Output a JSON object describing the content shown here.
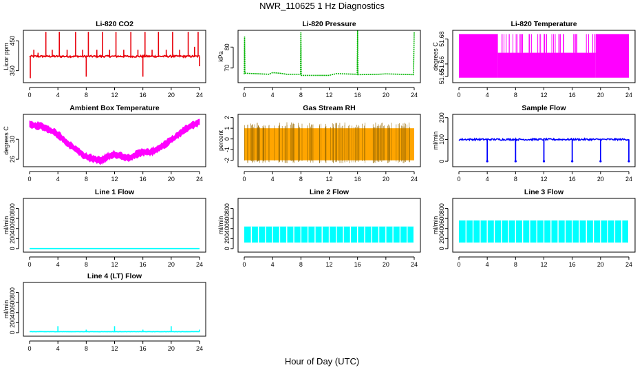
{
  "figure": {
    "title": "NWR_110625  1 Hz Diagnostics",
    "xlabel": "Hour of Day (UTC)"
  },
  "chart_data": [
    {
      "type": "line",
      "title": "Li-820 CO2",
      "ylabel": "Licor ppm",
      "color": "#e8000b",
      "xlim": [
        0,
        24
      ],
      "xticks": [
        0,
        4,
        8,
        12,
        16,
        20,
        24
      ],
      "ylim": [
        310,
        485
      ],
      "yticks": [
        350,
        450
      ],
      "yticklabels": [
        "350",
        "450"
      ],
      "baseline": 398,
      "noise": 3,
      "spikes": [
        {
          "x": 0.1,
          "y": 325
        },
        {
          "x": 0.6,
          "y": 420
        },
        {
          "x": 1.2,
          "y": 410
        },
        {
          "x": 2.3,
          "y": 480
        },
        {
          "x": 3.2,
          "y": 420
        },
        {
          "x": 4.2,
          "y": 480
        },
        {
          "x": 5.3,
          "y": 420
        },
        {
          "x": 6.5,
          "y": 480
        },
        {
          "x": 7.5,
          "y": 420
        },
        {
          "x": 8.0,
          "y": 330
        },
        {
          "x": 8.3,
          "y": 480
        },
        {
          "x": 9.5,
          "y": 420
        },
        {
          "x": 10.3,
          "y": 480
        },
        {
          "x": 11.3,
          "y": 420
        },
        {
          "x": 12.2,
          "y": 480
        },
        {
          "x": 13.3,
          "y": 420
        },
        {
          "x": 14.3,
          "y": 480
        },
        {
          "x": 15.3,
          "y": 420
        },
        {
          "x": 16.0,
          "y": 330
        },
        {
          "x": 16.3,
          "y": 480
        },
        {
          "x": 17.3,
          "y": 420
        },
        {
          "x": 18.2,
          "y": 480
        },
        {
          "x": 19.3,
          "y": 420
        },
        {
          "x": 20.2,
          "y": 480
        },
        {
          "x": 21.2,
          "y": 420
        },
        {
          "x": 22.4,
          "y": 480
        },
        {
          "x": 23.3,
          "y": 430
        },
        {
          "x": 23.8,
          "y": 480
        },
        {
          "x": 24.0,
          "y": 365
        }
      ]
    },
    {
      "type": "line",
      "title": "Li-820 Pressure",
      "ylabel": "kPa",
      "color": "#00b400",
      "xlim": [
        0,
        24
      ],
      "xticks": [
        0,
        4,
        8,
        12,
        16,
        20,
        24
      ],
      "ylim": [
        63,
        88
      ],
      "yticks": [
        70,
        80
      ],
      "yticklabels": [
        "70",
        "80"
      ],
      "series": [
        {
          "x": 0.0,
          "y": 67
        },
        {
          "x": 0.05,
          "y": 85
        },
        {
          "x": 0.1,
          "y": 67.5
        },
        {
          "x": 3.5,
          "y": 67
        },
        {
          "x": 4.0,
          "y": 67.8
        },
        {
          "x": 5.0,
          "y": 67.5
        },
        {
          "x": 6.0,
          "y": 67
        },
        {
          "x": 7.95,
          "y": 67
        },
        {
          "x": 8.0,
          "y": 87
        },
        {
          "x": 8.05,
          "y": 66.5
        },
        {
          "x": 12.0,
          "y": 66.5
        },
        {
          "x": 13.0,
          "y": 67.3
        },
        {
          "x": 15.95,
          "y": 67
        },
        {
          "x": 16.0,
          "y": 88
        },
        {
          "x": 16.05,
          "y": 66.8
        },
        {
          "x": 19.0,
          "y": 67
        },
        {
          "x": 20.0,
          "y": 67.2
        },
        {
          "x": 23.9,
          "y": 66.8
        },
        {
          "x": 24.0,
          "y": 87
        }
      ]
    },
    {
      "type": "line",
      "title": "Li-820 Temperature",
      "ylabel": "degrees C",
      "color": "#ff00ff",
      "xlim": [
        0,
        24
      ],
      "xticks": [
        0,
        4,
        8,
        12,
        16,
        20,
        24
      ],
      "ylim": [
        51.645,
        51.687
      ],
      "yticks": [
        51.65,
        51.66,
        51.68
      ],
      "yticklabels": [
        "51.65",
        "51.66",
        "51.68"
      ],
      "levels": [
        51.649,
        51.669,
        51.684
      ],
      "full_band_ranges": [
        [
          0,
          5.5
        ],
        [
          19.3,
          24
        ]
      ]
    },
    {
      "type": "line",
      "title": "Ambient Box Temperature",
      "ylabel": "degrees C",
      "color": "#ff00ff",
      "xlim": [
        0,
        24
      ],
      "xticks": [
        0,
        4,
        8,
        12,
        16,
        20,
        24
      ],
      "ylim": [
        24.5,
        35
      ],
      "yticks": [
        26,
        30
      ],
      "yticklabels": [
        "26",
        "30"
      ],
      "band": 1.2,
      "series": [
        {
          "x": 0,
          "y": 33.0
        },
        {
          "x": 2,
          "y": 32.5
        },
        {
          "x": 4,
          "y": 31.0
        },
        {
          "x": 6,
          "y": 28.5
        },
        {
          "x": 8,
          "y": 26.5
        },
        {
          "x": 10,
          "y": 25.7
        },
        {
          "x": 11,
          "y": 26.5
        },
        {
          "x": 12,
          "y": 27.0
        },
        {
          "x": 14,
          "y": 26.3
        },
        {
          "x": 16,
          "y": 27.5
        },
        {
          "x": 17,
          "y": 27.3
        },
        {
          "x": 18,
          "y": 28.0
        },
        {
          "x": 20,
          "y": 29.8
        },
        {
          "x": 22,
          "y": 32.0
        },
        {
          "x": 24,
          "y": 33.5
        }
      ]
    },
    {
      "type": "line",
      "title": "Gas Stream RH",
      "ylabel": "percent",
      "color": "#ffa500",
      "xlim": [
        0,
        24
      ],
      "xticks": [
        0,
        4,
        8,
        12,
        16,
        20,
        24
      ],
      "ylim": [
        -2.6,
        2.3
      ],
      "yticks": [
        -2,
        -1,
        0,
        1,
        2
      ],
      "yticklabels": [
        "-2",
        "-1",
        "0",
        "1",
        "2"
      ],
      "band_low": -2.0,
      "band_high": 1.0,
      "max": 1.8,
      "min": -2.4
    },
    {
      "type": "line",
      "title": "Sample Flow",
      "ylabel": "ml/min",
      "color": "#0000ff",
      "xlim": [
        0,
        24
      ],
      "xticks": [
        0,
        4,
        8,
        12,
        16,
        20,
        24
      ],
      "ylim": [
        -25,
        215
      ],
      "yticks": [
        0,
        100,
        200
      ],
      "yticklabels": [
        "0",
        "100",
        "200"
      ],
      "baseline": 100,
      "noise": 4,
      "drops": [
        {
          "x": 4.0,
          "y": 0
        },
        {
          "x": 8.0,
          "y": 0
        },
        {
          "x": 12.0,
          "y": 0
        },
        {
          "x": 16.0,
          "y": 0
        },
        {
          "x": 20.0,
          "y": 0
        },
        {
          "x": 24.0,
          "y": 0
        }
      ]
    },
    {
      "type": "line",
      "title": "Line 1 Flow",
      "ylabel": "ml/min",
      "color": "#00ffff",
      "xlim": [
        0,
        24
      ],
      "xticks": [
        0,
        4,
        8,
        12,
        16,
        20,
        24
      ],
      "ylim": [
        -70,
        1000
      ],
      "yticks": [
        0,
        200,
        400,
        600,
        800
      ],
      "yticklabels": [
        "0",
        "200",
        "400",
        "600",
        "800"
      ],
      "constant": 0
    },
    {
      "type": "line",
      "title": "Line 2 Flow",
      "ylabel": "ml/min",
      "color": "#00ffff",
      "xlim": [
        0,
        24
      ],
      "xticks": [
        0,
        4,
        8,
        12,
        16,
        20,
        24
      ],
      "ylim": [
        -70,
        1000
      ],
      "yticks": [
        0,
        200,
        400,
        600,
        800
      ],
      "yticklabels": [
        "0",
        "200",
        "400",
        "600",
        "800"
      ],
      "band_low": 120,
      "band_high": 440,
      "dip_every": 1.0,
      "dip_to": 60
    },
    {
      "type": "line",
      "title": "Line 3 Flow",
      "ylabel": "ml/min",
      "color": "#00ffff",
      "xlim": [
        0,
        24
      ],
      "xticks": [
        0,
        4,
        8,
        12,
        16,
        20,
        24
      ],
      "ylim": [
        -70,
        1000
      ],
      "yticks": [
        0,
        200,
        400,
        600,
        800
      ],
      "yticklabels": [
        "0",
        "200",
        "400",
        "600",
        "800"
      ],
      "band_low": 120,
      "band_high": 560,
      "dip_every": 1.0,
      "dip_to": 60
    },
    {
      "type": "line",
      "title": "Line 4 (LT) Flow",
      "ylabel": "ml/min",
      "color": "#00ffff",
      "xlim": [
        0,
        24
      ],
      "xticks": [
        0,
        4,
        8,
        12,
        16,
        20,
        24
      ],
      "ylim": [
        -70,
        1000
      ],
      "yticks": [
        0,
        200,
        400,
        600,
        800
      ],
      "yticklabels": [
        "0",
        "200",
        "400",
        "600",
        "800"
      ],
      "baseline": 20,
      "spikes": [
        {
          "x": 4.0,
          "y": 130
        },
        {
          "x": 8.0,
          "y": 60
        },
        {
          "x": 12.0,
          "y": 130
        },
        {
          "x": 16.0,
          "y": 60
        },
        {
          "x": 20.0,
          "y": 130
        },
        {
          "x": 24.0,
          "y": 60
        }
      ]
    }
  ]
}
